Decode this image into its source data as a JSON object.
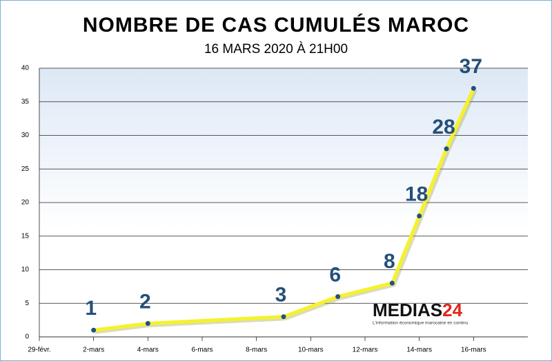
{
  "chart_data": {
    "type": "line",
    "title": "NOMBRE DE CAS CUMULÉS  MAROC",
    "subtitle": "16 MARS 2020 À 21H00",
    "x": [
      "03-02",
      "03-04",
      "03-09",
      "03-11",
      "03-13",
      "03-14",
      "03-15",
      "03-16"
    ],
    "series": [
      {
        "name": "Cas cumulés",
        "color": "#f5f22a",
        "marker_color": "#24507a",
        "values": [
          1,
          2,
          3,
          6,
          8,
          18,
          28,
          37
        ]
      }
    ],
    "xlim": [
      "02-29",
      "03-18"
    ],
    "xticks": [
      {
        "value": "02-29",
        "label": "29-févr."
      },
      {
        "value": "03-02",
        "label": "2-mars"
      },
      {
        "value": "03-04",
        "label": "4-mars"
      },
      {
        "value": "03-06",
        "label": "6-mars"
      },
      {
        "value": "03-08",
        "label": "8-mars"
      },
      {
        "value": "03-10",
        "label": "10-mars"
      },
      {
        "value": "03-12",
        "label": "12-mars"
      },
      {
        "value": "03-14",
        "label": "14-mars"
      },
      {
        "value": "03-16",
        "label": "16-mars"
      }
    ],
    "ylim": [
      0,
      40
    ],
    "yticks": [
      0,
      5,
      10,
      15,
      20,
      25,
      30,
      35,
      40
    ],
    "grid": true,
    "logo": {
      "name": "MEDIAS",
      "number": "24",
      "tagline": "L'information économique marocaine en continu"
    }
  }
}
